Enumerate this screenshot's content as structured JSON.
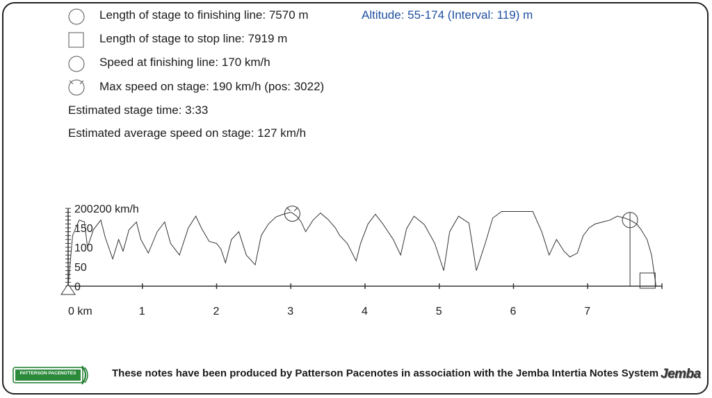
{
  "info": {
    "finish_length": "Length of stage to finishing line: 7570 m",
    "stop_length": "Length of stage to stop line: 7919 m",
    "finish_speed": "Speed at finishing line: 170 km/h",
    "max_speed": "Max speed on stage: 190 km/h (pos: 3022)",
    "stage_time": "Estimated stage time: 3:33",
    "avg_speed": "Estimated average speed on stage: 127 km/h",
    "altitude": "Altitude: 55-174 (Interval: 119) m"
  },
  "legend_icons": [
    "circle-icon",
    "square-icon",
    "circle-icon",
    "circle-dashed-icon"
  ],
  "colors": {
    "altitude_text": "#1f4fa0",
    "line": "#333333",
    "frame": "#222222"
  },
  "footer": {
    "credit": "These notes have been produced by Patterson Pacenotes in association with the Jemba Intertia Notes System",
    "logo_left": "PATTERSON PACENOTES",
    "logo_right": "Jemba"
  },
  "chart_data": {
    "type": "line",
    "title": "",
    "ylabel": "200 km/h",
    "xlabel": "",
    "xlim": [
      0,
      8
    ],
    "ylim": [
      0,
      200
    ],
    "y_ticks": [
      0,
      50,
      100,
      150,
      200
    ],
    "y_tick_labels": [
      "0",
      "50",
      "100",
      "150",
      "200"
    ],
    "x_ticks": [
      0,
      1,
      2,
      3,
      4,
      5,
      6,
      7
    ],
    "x_tick_labels": [
      "0 km",
      "1",
      "2",
      "3",
      "4",
      "5",
      "6",
      "7"
    ],
    "max_speed_marker": {
      "x": 3.02,
      "y": 190
    },
    "finish_marker": {
      "x": 7.57,
      "y": 170
    },
    "stop_marker": {
      "x": 7.919,
      "y": 0
    },
    "series": [
      {
        "x": [
          0,
          0.06,
          0.15,
          0.22,
          0.26,
          0.34,
          0.44,
          0.5,
          0.6,
          0.68,
          0.74,
          0.82,
          0.92,
          0.98,
          1.08,
          1.2,
          1.3,
          1.38,
          1.5,
          1.62,
          1.72,
          1.8,
          1.9,
          2.0,
          2.06,
          2.12,
          2.2,
          2.3,
          2.4,
          2.52,
          2.6,
          2.7,
          2.8,
          2.9,
          3.0,
          3.02,
          3.08,
          3.14,
          3.2,
          3.3,
          3.4,
          3.5,
          3.6,
          3.66,
          3.76,
          3.88,
          3.94,
          4.04,
          4.14,
          4.24,
          4.38,
          4.48,
          4.56,
          4.66,
          4.8,
          4.94,
          5.06,
          5.14,
          5.26,
          5.4,
          5.5,
          5.62,
          5.72,
          5.84,
          5.98,
          6.12,
          6.26,
          6.38,
          6.48,
          6.58,
          6.68,
          6.76,
          6.86,
          6.94,
          7.02,
          7.1,
          7.2,
          7.3,
          7.4,
          7.5,
          7.57,
          7.66,
          7.72,
          7.8,
          7.86,
          7.92
        ],
        "y": [
          0,
          130,
          170,
          165,
          100,
          145,
          170,
          125,
          70,
          120,
          90,
          145,
          165,
          120,
          85,
          140,
          165,
          110,
          80,
          150,
          180,
          148,
          115,
          110,
          95,
          60,
          120,
          140,
          80,
          55,
          130,
          160,
          178,
          185,
          190,
          188,
          180,
          165,
          140,
          170,
          188,
          172,
          150,
          130,
          110,
          65,
          110,
          160,
          185,
          160,
          120,
          80,
          148,
          180,
          158,
          110,
          40,
          140,
          180,
          162,
          40,
          110,
          175,
          192,
          192,
          192,
          192,
          140,
          80,
          120,
          90,
          75,
          85,
          130,
          150,
          160,
          165,
          170,
          180,
          175,
          170,
          160,
          145,
          120,
          80,
          0
        ]
      }
    ]
  }
}
